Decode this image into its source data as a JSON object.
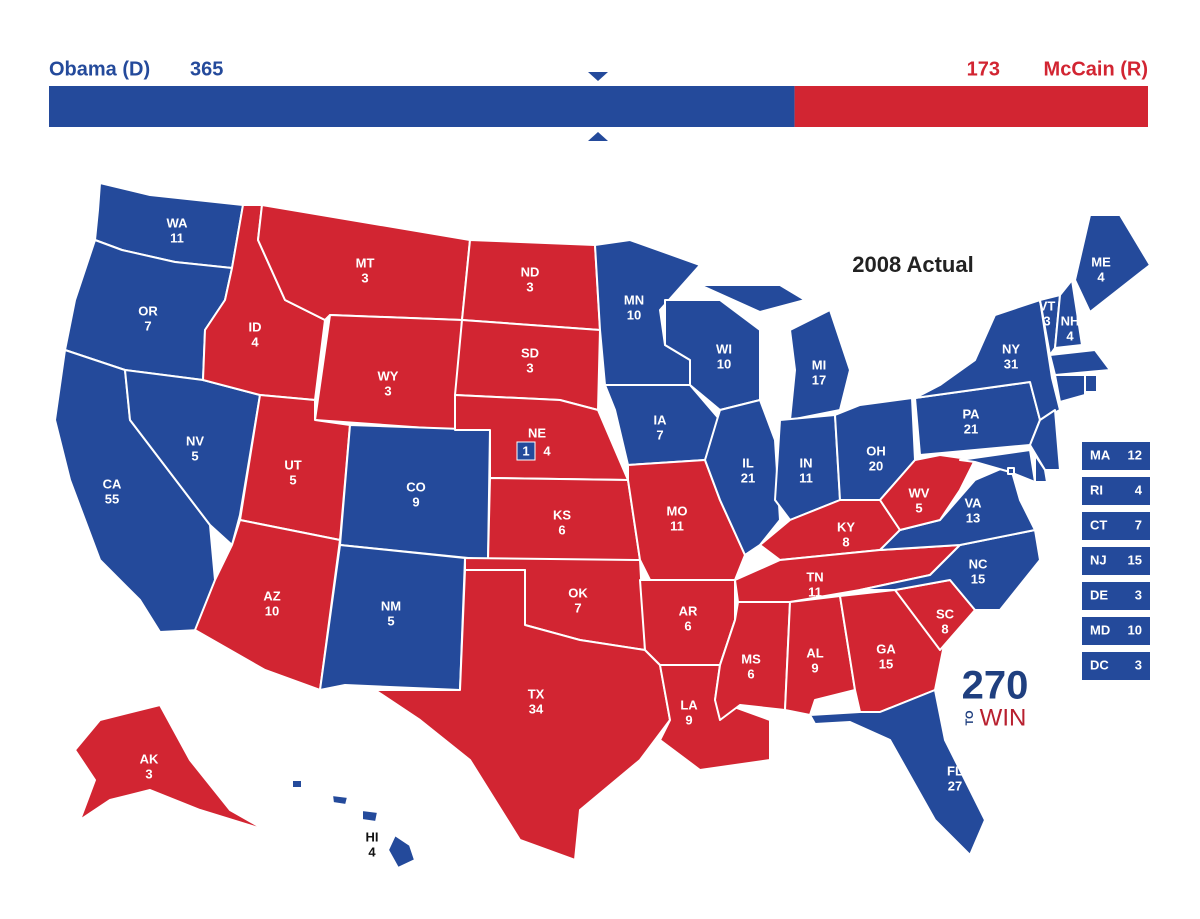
{
  "header": {
    "dem": {
      "label": "Obama (D)",
      "votes": 365,
      "color": "#244a9b"
    },
    "rep": {
      "label": "McCain (R)",
      "votes": 173,
      "color": "#d22532"
    }
  },
  "map_title": "2008 Actual",
  "states": [
    {
      "abbr": "WA",
      "votes": 11,
      "color": "#244a9b"
    },
    {
      "abbr": "OR",
      "votes": 7,
      "color": "#244a9b"
    },
    {
      "abbr": "CA",
      "votes": 55,
      "color": "#244a9b"
    },
    {
      "abbr": "NV",
      "votes": 5,
      "color": "#244a9b"
    },
    {
      "abbr": "ID",
      "votes": 4,
      "color": "#d22532"
    },
    {
      "abbr": "MT",
      "votes": 3,
      "color": "#d22532"
    },
    {
      "abbr": "WY",
      "votes": 3,
      "color": "#d22532"
    },
    {
      "abbr": "UT",
      "votes": 5,
      "color": "#d22532"
    },
    {
      "abbr": "AZ",
      "votes": 10,
      "color": "#d22532"
    },
    {
      "abbr": "CO",
      "votes": 9,
      "color": "#244a9b"
    },
    {
      "abbr": "NM",
      "votes": 5,
      "color": "#244a9b"
    },
    {
      "abbr": "ND",
      "votes": 3,
      "color": "#d22532"
    },
    {
      "abbr": "SD",
      "votes": 3,
      "color": "#d22532"
    },
    {
      "abbr": "NE",
      "votes": 4,
      "color": "#d22532",
      "split": {
        "votes": 1,
        "color": "#244a9b"
      }
    },
    {
      "abbr": "KS",
      "votes": 6,
      "color": "#d22532"
    },
    {
      "abbr": "OK",
      "votes": 7,
      "color": "#d22532"
    },
    {
      "abbr": "TX",
      "votes": 34,
      "color": "#d22532"
    },
    {
      "abbr": "MN",
      "votes": 10,
      "color": "#244a9b"
    },
    {
      "abbr": "IA",
      "votes": 7,
      "color": "#244a9b"
    },
    {
      "abbr": "MO",
      "votes": 11,
      "color": "#d22532"
    },
    {
      "abbr": "AR",
      "votes": 6,
      "color": "#d22532"
    },
    {
      "abbr": "LA",
      "votes": 9,
      "color": "#d22532"
    },
    {
      "abbr": "WI",
      "votes": 10,
      "color": "#244a9b"
    },
    {
      "abbr": "IL",
      "votes": 21,
      "color": "#244a9b"
    },
    {
      "abbr": "MI",
      "votes": 17,
      "color": "#244a9b"
    },
    {
      "abbr": "IN",
      "votes": 11,
      "color": "#244a9b"
    },
    {
      "abbr": "OH",
      "votes": 20,
      "color": "#244a9b"
    },
    {
      "abbr": "KY",
      "votes": 8,
      "color": "#d22532"
    },
    {
      "abbr": "TN",
      "votes": 11,
      "color": "#d22532"
    },
    {
      "abbr": "MS",
      "votes": 6,
      "color": "#d22532"
    },
    {
      "abbr": "AL",
      "votes": 9,
      "color": "#d22532"
    },
    {
      "abbr": "GA",
      "votes": 15,
      "color": "#d22532"
    },
    {
      "abbr": "SC",
      "votes": 8,
      "color": "#d22532"
    },
    {
      "abbr": "FL",
      "votes": 27,
      "color": "#244a9b"
    },
    {
      "abbr": "NC",
      "votes": 15,
      "color": "#244a9b"
    },
    {
      "abbr": "VA",
      "votes": 13,
      "color": "#244a9b"
    },
    {
      "abbr": "WV",
      "votes": 5,
      "color": "#d22532"
    },
    {
      "abbr": "PA",
      "votes": 21,
      "color": "#244a9b"
    },
    {
      "abbr": "NY",
      "votes": 31,
      "color": "#244a9b"
    },
    {
      "abbr": "VT",
      "votes": 3,
      "color": "#244a9b"
    },
    {
      "abbr": "NH",
      "votes": 4,
      "color": "#244a9b"
    },
    {
      "abbr": "ME",
      "votes": 4,
      "color": "#244a9b"
    },
    {
      "abbr": "AK",
      "votes": 3,
      "color": "#d22532"
    },
    {
      "abbr": "HI",
      "votes": 4,
      "color": "#244a9b"
    }
  ],
  "small_states": [
    {
      "abbr": "MA",
      "votes": 12,
      "color": "#244a9b"
    },
    {
      "abbr": "RI",
      "votes": 4,
      "color": "#244a9b"
    },
    {
      "abbr": "CT",
      "votes": 7,
      "color": "#244a9b"
    },
    {
      "abbr": "NJ",
      "votes": 15,
      "color": "#244a9b"
    },
    {
      "abbr": "DE",
      "votes": 3,
      "color": "#244a9b"
    },
    {
      "abbr": "MD",
      "votes": 10,
      "color": "#244a9b"
    },
    {
      "abbr": "DC",
      "votes": 3,
      "color": "#244a9b"
    }
  ],
  "logo": {
    "number": "270",
    "small": "TO",
    "word": "WIN"
  }
}
